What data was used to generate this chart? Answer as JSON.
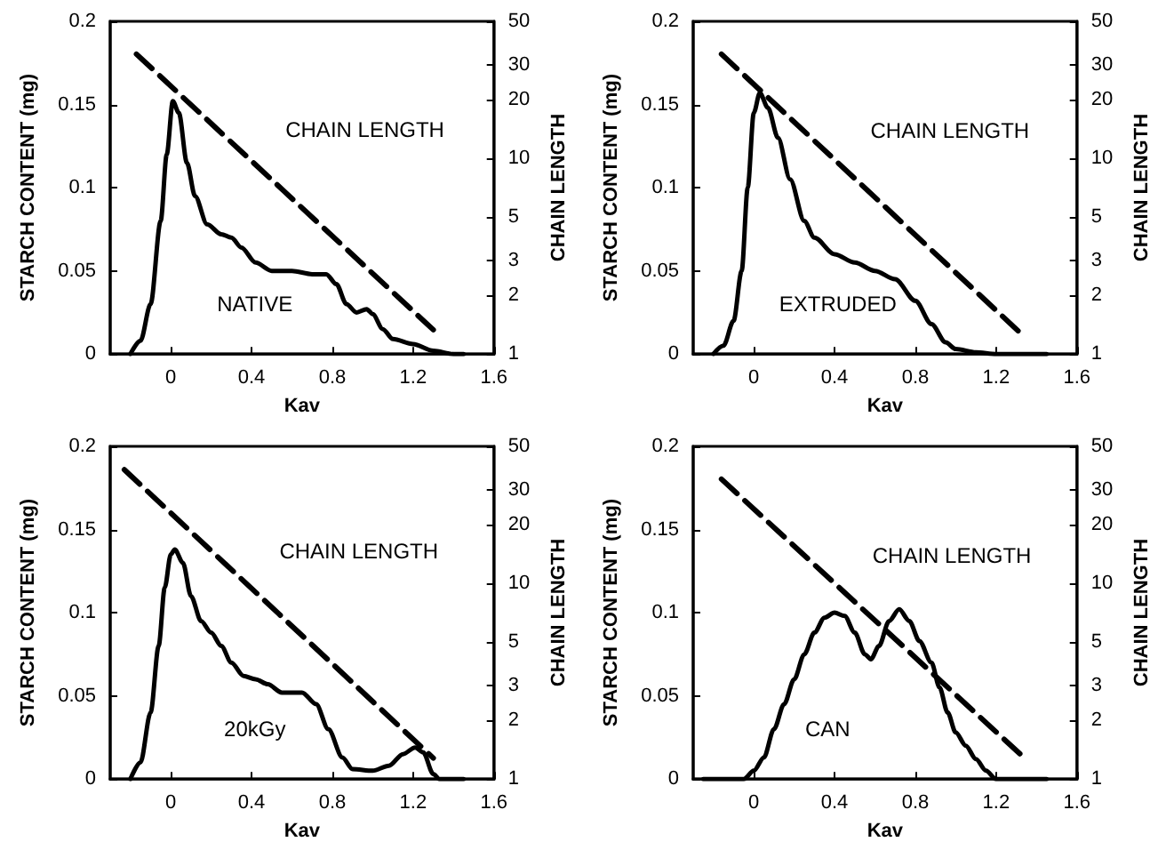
{
  "chart_data": [
    {
      "type": "line",
      "xlabel": "Kav",
      "ylabel": "STARCH CONTENT (mg)",
      "y2label": "CHAIN LENGTH",
      "log": "y2",
      "marker": "none",
      "xlim": [
        -0.3,
        1.6
      ],
      "xticks": [
        0,
        0.4,
        0.8,
        1.2,
        1.6
      ],
      "ylim": [
        0,
        0.2
      ],
      "yticks": [
        0,
        0.05,
        0.1,
        0.15,
        0.2
      ],
      "y2lim": [
        1,
        50
      ],
      "y2ticks": [
        1,
        2,
        3,
        5,
        10,
        20,
        30,
        50
      ],
      "series": [
        {
          "name": "NATIVE",
          "color": "#000000",
          "line_style": "solid",
          "x": [
            -0.2,
            -0.15,
            -0.1,
            -0.05,
            -0.02,
            0.01,
            0.04,
            0.08,
            0.12,
            0.18,
            0.25,
            0.3,
            0.35,
            0.42,
            0.5,
            0.6,
            0.7,
            0.77,
            0.82,
            0.87,
            0.92,
            0.97,
            1.0,
            1.05,
            1.1,
            1.2,
            1.3,
            1.4,
            1.45
          ],
          "values": [
            0,
            0.008,
            0.03,
            0.08,
            0.12,
            0.152,
            0.145,
            0.115,
            0.095,
            0.078,
            0.072,
            0.07,
            0.064,
            0.055,
            0.05,
            0.05,
            0.048,
            0.048,
            0.042,
            0.03,
            0.025,
            0.027,
            0.024,
            0.015,
            0.009,
            0.006,
            0.002,
            0,
            0
          ]
        },
        {
          "name": "CHAIN LENGTH",
          "color": "#000000",
          "line_style": "dashed",
          "axis": "y2",
          "x": [
            -0.17,
            1.3
          ],
          "values": [
            34,
            1.33
          ]
        }
      ]
    },
    {
      "type": "line",
      "xlabel": "Kav",
      "ylabel": "STARCH CONTENT (mg)",
      "y2label": "CHAIN LENGTH",
      "log": "y2",
      "marker": "none",
      "xlim": [
        -0.3,
        1.6
      ],
      "xticks": [
        0,
        0.4,
        0.8,
        1.2,
        1.6
      ],
      "ylim": [
        0,
        0.2
      ],
      "yticks": [
        0,
        0.05,
        0.1,
        0.15,
        0.2
      ],
      "y2lim": [
        1,
        50
      ],
      "y2ticks": [
        1,
        2,
        3,
        5,
        10,
        20,
        30,
        50
      ],
      "series": [
        {
          "name": "EXTRUDED",
          "color": "#000000",
          "line_style": "solid",
          "x": [
            -0.2,
            -0.15,
            -0.1,
            -0.06,
            -0.03,
            0,
            0.03,
            0.07,
            0.12,
            0.18,
            0.25,
            0.3,
            0.4,
            0.5,
            0.6,
            0.7,
            0.8,
            0.88,
            0.95,
            1.0,
            1.1,
            1.2,
            1.45
          ],
          "values": [
            0,
            0.005,
            0.02,
            0.05,
            0.1,
            0.145,
            0.157,
            0.148,
            0.13,
            0.105,
            0.08,
            0.07,
            0.06,
            0.055,
            0.05,
            0.045,
            0.032,
            0.018,
            0.007,
            0.003,
            0.001,
            0,
            0
          ]
        },
        {
          "name": "CHAIN LENGTH",
          "color": "#000000",
          "line_style": "dashed",
          "axis": "y2",
          "x": [
            -0.16,
            1.31
          ],
          "values": [
            34,
            1.31
          ]
        }
      ]
    },
    {
      "type": "line",
      "xlabel": "Kav",
      "ylabel": "STARCH CONTENT (mg)",
      "y2label": "CHAIN LENGTH",
      "log": "y2",
      "marker": "none",
      "xlim": [
        -0.3,
        1.6
      ],
      "xticks": [
        0,
        0.4,
        0.8,
        1.2,
        1.6
      ],
      "ylim": [
        0,
        0.2
      ],
      "yticks": [
        0,
        0.05,
        0.1,
        0.15,
        0.2
      ],
      "y2lim": [
        1,
        50
      ],
      "y2ticks": [
        1,
        2,
        3,
        5,
        10,
        20,
        30,
        50
      ],
      "series": [
        {
          "name": "20kGy",
          "color": "#000000",
          "line_style": "solid",
          "x": [
            -0.2,
            -0.15,
            -0.1,
            -0.06,
            -0.03,
            0,
            0.02,
            0.06,
            0.1,
            0.15,
            0.2,
            0.25,
            0.3,
            0.36,
            0.42,
            0.48,
            0.55,
            0.65,
            0.72,
            0.78,
            0.85,
            0.9,
            1.0,
            1.08,
            1.15,
            1.21,
            1.25,
            1.3,
            1.33,
            1.45
          ],
          "values": [
            0,
            0.01,
            0.04,
            0.08,
            0.115,
            0.135,
            0.138,
            0.13,
            0.11,
            0.095,
            0.088,
            0.08,
            0.07,
            0.062,
            0.06,
            0.057,
            0.052,
            0.052,
            0.045,
            0.03,
            0.013,
            0.006,
            0.005,
            0.008,
            0.015,
            0.019,
            0.016,
            0.003,
            0,
            0
          ]
        },
        {
          "name": "CHAIN LENGTH",
          "color": "#000000",
          "line_style": "dashed",
          "axis": "y2",
          "x": [
            -0.23,
            1.3
          ],
          "values": [
            38,
            1.28
          ]
        }
      ]
    },
    {
      "type": "line",
      "xlabel": "Kav",
      "ylabel": "STARCH CONTENT (mg)",
      "y2label": "CHAIN LENGTH",
      "log": "y2",
      "marker": "none",
      "xlim": [
        -0.3,
        1.6
      ],
      "xticks": [
        0,
        0.4,
        0.8,
        1.2,
        1.6
      ],
      "ylim": [
        0,
        0.2
      ],
      "yticks": [
        0,
        0.05,
        0.1,
        0.15,
        0.2
      ],
      "y2lim": [
        1,
        50
      ],
      "y2ticks": [
        1,
        2,
        3,
        5,
        10,
        20,
        30,
        50
      ],
      "series": [
        {
          "name": "CAN",
          "color": "#000000",
          "line_style": "solid",
          "x": [
            -0.25,
            -0.05,
            0,
            0.05,
            0.1,
            0.15,
            0.2,
            0.25,
            0.3,
            0.35,
            0.4,
            0.45,
            0.5,
            0.55,
            0.58,
            0.62,
            0.67,
            0.72,
            0.77,
            0.82,
            0.88,
            0.92,
            0.96,
            1.0,
            1.05,
            1.1,
            1.15,
            1.2,
            1.45
          ],
          "values": [
            0,
            0,
            0.005,
            0.013,
            0.03,
            0.045,
            0.06,
            0.075,
            0.088,
            0.097,
            0.1,
            0.098,
            0.088,
            0.075,
            0.072,
            0.08,
            0.095,
            0.102,
            0.095,
            0.083,
            0.07,
            0.055,
            0.04,
            0.028,
            0.02,
            0.012,
            0.005,
            0,
            0
          ]
        },
        {
          "name": "CHAIN LENGTH",
          "color": "#000000",
          "line_style": "dashed",
          "axis": "y2",
          "x": [
            -0.16,
            1.33
          ],
          "values": [
            34,
            1.31
          ]
        }
      ]
    }
  ]
}
